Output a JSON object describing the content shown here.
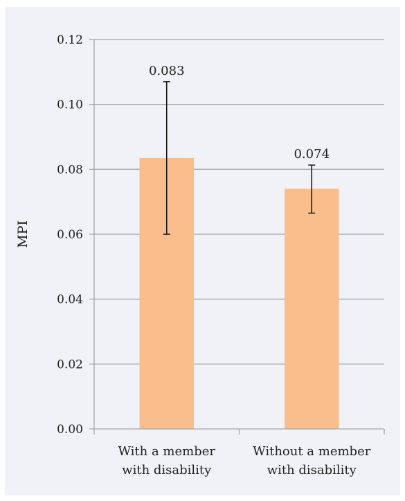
{
  "chart_data": {
    "type": "bar",
    "title": "",
    "xlabel": "",
    "ylabel": "MPI",
    "ylim": [
      0,
      0.12
    ],
    "yticks": [
      "0.00",
      "0.02",
      "0.04",
      "0.06",
      "0.08",
      "0.10",
      "0.12"
    ],
    "grid": true,
    "legend": "none",
    "categories": [
      [
        "With a member",
        "with disability"
      ],
      [
        "Without a member",
        "with disability"
      ]
    ],
    "values": [
      0.0835,
      0.074
    ],
    "data_labels": [
      "0.083",
      "0.074"
    ],
    "error_bars": [
      {
        "low": 0.06,
        "high": 0.107
      },
      {
        "low": 0.0665,
        "high": 0.0813
      }
    ],
    "colors": {
      "background": "#f1f2f7",
      "bar": "#f9be8c",
      "grid": "#a6a6a6",
      "error_bar": "#1a1a1a",
      "text": "#222222"
    }
  }
}
